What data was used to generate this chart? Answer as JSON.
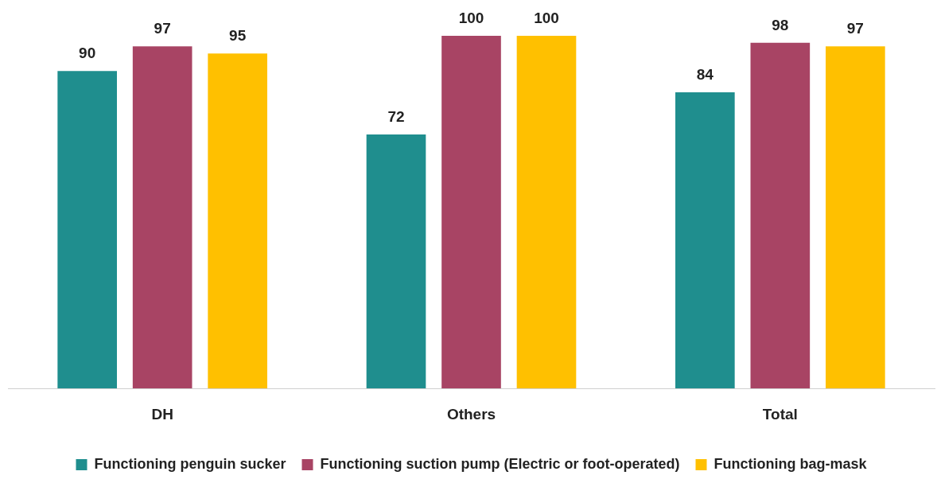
{
  "chart_data": {
    "type": "bar",
    "categories": [
      "DH",
      "Others",
      "Total"
    ],
    "series": [
      {
        "name": "Functioning penguin sucker",
        "color": "#1f8e8e",
        "values": [
          90,
          72,
          84
        ]
      },
      {
        "name": "Functioning suction pump (Electric or foot-operated)",
        "color": "#a84464",
        "values": [
          97,
          100,
          98
        ]
      },
      {
        "name": "Functioning bag-mask",
        "color": "#ffc000",
        "values": [
          95,
          100,
          97
        ]
      }
    ],
    "ylim": [
      0,
      100
    ],
    "tick_labels": "x",
    "grid": false,
    "legend": "bottom",
    "data_labels": true
  }
}
